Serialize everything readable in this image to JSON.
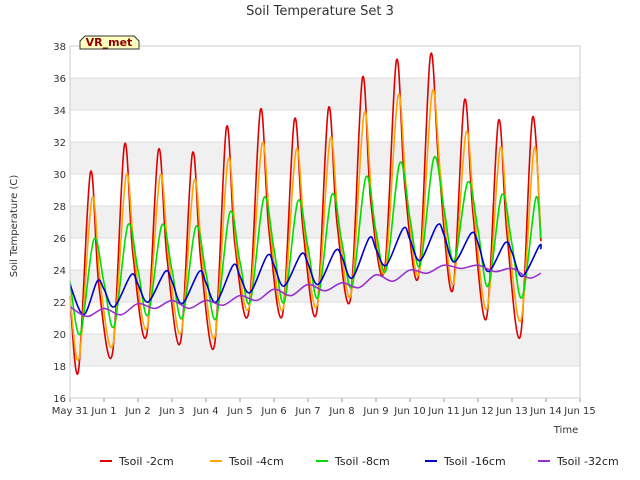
{
  "chart_data": {
    "type": "line",
    "title": "Soil Temperature Set 3",
    "xlabel": "Time",
    "ylabel": "Soil Temperature (C)",
    "badge": "VR_met",
    "x_tick_labels": [
      "May 31",
      "Jun 1",
      "Jun 2",
      "Jun 3",
      "Jun 4",
      "Jun 5",
      "Jun 6",
      "Jun 7",
      "Jun 8",
      "Jun 9",
      "Jun 10",
      "Jun 11",
      "Jun 12",
      "Jun 13",
      "Jun 14",
      "Jun 15"
    ],
    "xlim": [
      0,
      15
    ],
    "ylim": [
      16,
      38
    ],
    "y_ticks": [
      16,
      18,
      20,
      22,
      24,
      26,
      28,
      30,
      32,
      34,
      36,
      38
    ],
    "grid": true,
    "background_bands": true,
    "legend_position": "bottom",
    "series": [
      {
        "name": "Tsoil -2cm",
        "color": "#dd0000",
        "x": [
          0.0,
          0.25,
          0.6,
          0.85,
          1.25,
          1.6,
          1.85,
          2.25,
          2.6,
          2.85,
          3.25,
          3.6,
          3.85,
          4.25,
          4.6,
          4.85,
          5.25,
          5.6,
          5.85,
          6.25,
          6.6,
          6.85,
          7.25,
          7.6,
          7.85,
          8.25,
          8.6,
          8.85,
          9.25,
          9.6,
          9.85,
          10.25,
          10.6,
          10.85,
          11.25,
          11.6,
          11.85,
          12.25,
          12.6,
          12.85,
          13.25,
          13.6,
          13.85
        ],
        "values": [
          22.3,
          17.7,
          30.1,
          23.0,
          18.8,
          31.8,
          25.0,
          19.9,
          31.5,
          24.8,
          19.5,
          31.3,
          24.5,
          19.3,
          32.9,
          25.6,
          21.3,
          34.0,
          26.5,
          21.2,
          33.4,
          26.6,
          21.3,
          34.1,
          27.0,
          22.2,
          36.0,
          28.2,
          24.0,
          37.1,
          29.2,
          23.6,
          37.4,
          30.5,
          22.7,
          34.6,
          27.6,
          21.0,
          33.3,
          26.3,
          19.9,
          33.5,
          25.8
        ]
      },
      {
        "name": "Tsoil -4cm",
        "color": "#ffa500",
        "x": [
          0.0,
          0.27,
          0.65,
          0.9,
          1.27,
          1.65,
          1.9,
          2.27,
          2.65,
          2.9,
          3.27,
          3.65,
          3.9,
          4.27,
          4.65,
          4.9,
          5.27,
          5.65,
          5.9,
          6.27,
          6.65,
          6.9,
          7.27,
          7.65,
          7.9,
          8.27,
          8.65,
          8.9,
          9.27,
          9.65,
          9.9,
          10.27,
          10.65,
          10.9,
          11.27,
          11.65,
          11.9,
          12.27,
          12.65,
          12.9,
          13.27,
          13.65,
          13.85
        ],
        "values": [
          22.4,
          18.5,
          28.5,
          23.0,
          19.4,
          29.9,
          24.8,
          20.4,
          29.9,
          24.8,
          20.1,
          29.6,
          24.5,
          19.9,
          30.9,
          25.3,
          21.7,
          31.9,
          26.3,
          21.6,
          31.5,
          26.4,
          21.8,
          32.2,
          26.9,
          22.5,
          33.8,
          27.9,
          24.0,
          34.9,
          28.9,
          23.8,
          35.1,
          29.9,
          23.1,
          32.6,
          27.3,
          21.6,
          31.6,
          26.1,
          20.9,
          31.6,
          26.0
        ]
      },
      {
        "name": "Tsoil -8cm",
        "color": "#00dd00",
        "x": [
          0.0,
          0.3,
          0.7,
          1.0,
          1.3,
          1.7,
          2.0,
          2.3,
          2.7,
          3.0,
          3.3,
          3.7,
          4.0,
          4.3,
          4.7,
          5.0,
          5.3,
          5.7,
          6.0,
          6.3,
          6.7,
          7.0,
          7.3,
          7.7,
          8.0,
          8.3,
          8.7,
          9.0,
          9.3,
          9.7,
          10.0,
          10.3,
          10.7,
          11.0,
          11.3,
          11.7,
          12.0,
          12.3,
          12.7,
          13.0,
          13.3,
          13.7,
          13.85
        ],
        "values": [
          23.3,
          20.0,
          25.9,
          23.2,
          20.5,
          26.8,
          24.0,
          21.2,
          26.8,
          24.0,
          21.0,
          26.7,
          23.8,
          21.0,
          27.6,
          24.5,
          22.0,
          28.5,
          25.3,
          22.0,
          28.3,
          25.4,
          22.3,
          28.7,
          25.7,
          23.0,
          29.8,
          26.4,
          24.0,
          30.7,
          27.2,
          24.3,
          31.0,
          27.8,
          24.6,
          29.5,
          26.5,
          23.0,
          28.7,
          25.6,
          22.3,
          28.5,
          26.0
        ]
      },
      {
        "name": "Tsoil -16cm",
        "color": "#0000cc",
        "x": [
          0.0,
          0.4,
          0.8,
          1.0,
          1.3,
          1.8,
          2.0,
          2.3,
          2.8,
          3.0,
          3.3,
          3.8,
          4.0,
          4.3,
          4.8,
          5.0,
          5.3,
          5.8,
          6.0,
          6.3,
          6.8,
          7.0,
          7.3,
          7.8,
          8.0,
          8.3,
          8.8,
          9.0,
          9.3,
          9.8,
          10.0,
          10.3,
          10.8,
          11.0,
          11.3,
          11.8,
          12.0,
          12.3,
          12.8,
          13.0,
          13.3,
          13.8,
          13.85
        ],
        "values": [
          23.1,
          21.2,
          23.3,
          22.8,
          21.7,
          23.7,
          23.1,
          22.0,
          23.9,
          23.3,
          21.9,
          23.9,
          23.2,
          22.0,
          24.3,
          23.6,
          22.6,
          24.9,
          24.3,
          23.0,
          25.0,
          24.4,
          23.1,
          25.2,
          24.8,
          23.5,
          26.0,
          25.3,
          24.3,
          26.6,
          25.9,
          24.6,
          26.8,
          26.2,
          24.5,
          26.3,
          25.7,
          23.9,
          25.7,
          25.1,
          23.6,
          25.5,
          25.3
        ]
      },
      {
        "name": "Tsoil -32cm",
        "color": "#9932cc",
        "x": [
          0.0,
          0.5,
          1.0,
          1.5,
          2.0,
          2.5,
          3.0,
          3.5,
          4.0,
          4.5,
          5.0,
          5.5,
          6.0,
          6.5,
          7.0,
          7.5,
          8.0,
          8.5,
          9.0,
          9.5,
          10.0,
          10.5,
          11.0,
          11.5,
          12.0,
          12.5,
          13.0,
          13.5,
          13.85
        ],
        "values": [
          21.7,
          21.1,
          21.6,
          21.2,
          21.9,
          21.6,
          22.1,
          21.6,
          22.1,
          21.8,
          22.4,
          22.1,
          22.8,
          22.4,
          23.1,
          22.7,
          23.2,
          22.9,
          23.7,
          23.3,
          24.0,
          23.8,
          24.3,
          24.1,
          24.3,
          23.9,
          24.1,
          23.5,
          23.8
        ]
      }
    ]
  }
}
